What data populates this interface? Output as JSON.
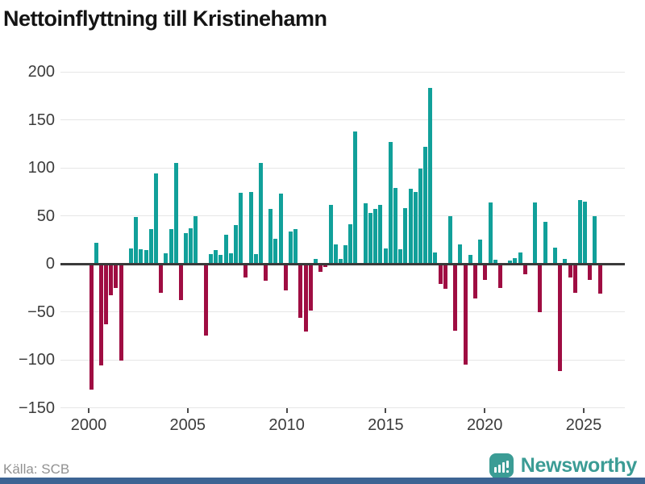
{
  "title": "Nettoinflyttning till Kristinehamn",
  "source": "Källa: SCB",
  "brand": {
    "name": "Newsworthy",
    "logo_icon": "bar-chart-bubble-icon"
  },
  "colors": {
    "positive": "#11a09a",
    "negative": "#9f0d42",
    "axis": "#3a3a3a",
    "grid": "#e6e6e6",
    "tick": "#4a4a4a",
    "label": "#3c3c3c",
    "source_text": "#919191",
    "brand": "#3b9c95",
    "footer_strip": "#3d6493"
  },
  "chart_data": {
    "type": "bar",
    "title": "Nettoinflyttning till Kristinehamn",
    "frequency": "quarterly",
    "start": "2000 Q1",
    "end": "2025 Q3",
    "xlabel": "",
    "ylabel": "",
    "ylim": [
      -150,
      200
    ],
    "grid": true,
    "legend": false,
    "y_ticks": [
      200,
      150,
      100,
      50,
      0,
      -50,
      -100,
      -150
    ],
    "x_ticks": [
      2000,
      2005,
      2010,
      2015,
      2020,
      2025
    ],
    "values": [
      -131,
      22,
      -106,
      -63,
      -33,
      -25,
      -101,
      0,
      16,
      49,
      15,
      14,
      36,
      94,
      -30,
      11,
      36,
      105,
      -38,
      32,
      37,
      50,
      0,
      -75,
      10,
      14,
      9,
      30,
      11,
      40,
      74,
      -14,
      75,
      10,
      105,
      -18,
      57,
      26,
      73,
      -28,
      34,
      36,
      -56,
      -71,
      -49,
      5,
      -8,
      -3,
      61,
      20,
      5,
      19,
      41,
      138,
      0,
      63,
      53,
      57,
      61,
      16,
      127,
      79,
      15,
      58,
      78,
      75,
      99,
      122,
      183,
      12,
      -21,
      -26,
      50,
      -70,
      20,
      -105,
      9,
      -36,
      25,
      -17,
      64,
      4,
      -25,
      0,
      3,
      6,
      12,
      -11,
      0,
      64,
      -50,
      44,
      0,
      17,
      -112,
      5,
      -14,
      -30,
      66,
      65,
      -17,
      50,
      -31
    ]
  }
}
